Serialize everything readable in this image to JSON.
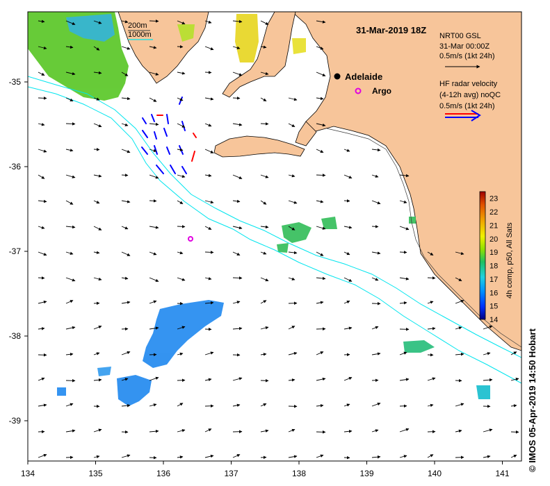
{
  "map": {
    "title": "31-Mar-2019 18Z",
    "credit": "© IMOS 05-Apr-2019 14:50 Hobart",
    "x_ticks": [
      "134",
      "135",
      "136",
      "137",
      "138",
      "139",
      "140",
      "141"
    ],
    "y_ticks": [
      "-35",
      "-36",
      "-37",
      "-38",
      "-39"
    ],
    "isobath_labels": [
      "200m",
      "1000m"
    ],
    "isobath_colors": [
      "#3a3a3a",
      "#00e5ee"
    ],
    "places": [
      {
        "name": "Adelaide",
        "marker": "filled-circle",
        "color": "#000000"
      },
      {
        "name": "Argo",
        "marker": "ring",
        "color": "#e000e0"
      }
    ],
    "legend": {
      "model_title": "NRT00 GSL",
      "model_time": "31-Mar 00:00Z",
      "model_scale": "0.5m/s (1kt 24h)",
      "hf_title": "HF radar velocity",
      "hf_sub": "(4-12h avg) noQC",
      "hf_scale": "0.5m/s (1kt 24h)",
      "hf_colors": [
        "#ff0000",
        "#0000ff"
      ]
    },
    "colorbar": {
      "label": "4h comp, p50, All Sats",
      "ticks": [
        "14",
        "15",
        "16",
        "17",
        "18",
        "19",
        "20",
        "21",
        "22",
        "23"
      ],
      "range": [
        14,
        23.5
      ]
    },
    "colors": {
      "land": "#f7c59a",
      "ocean": "#ffffff",
      "coast": "#000000"
    }
  }
}
